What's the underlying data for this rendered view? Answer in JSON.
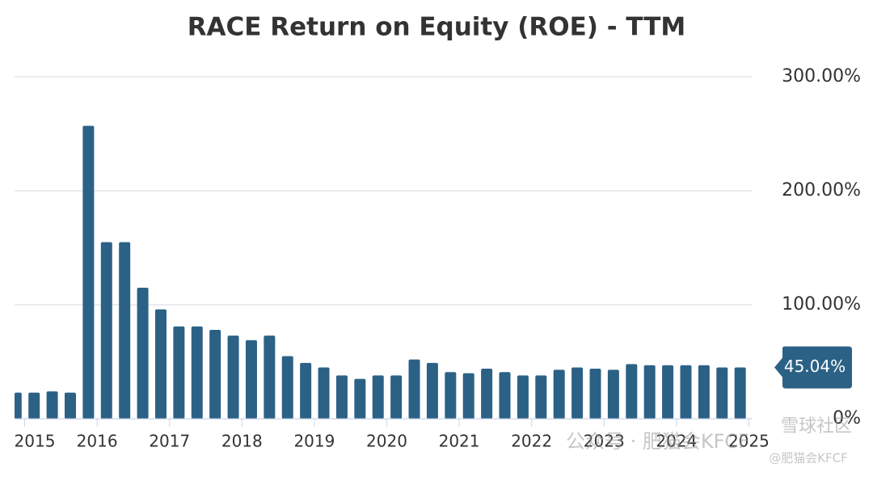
{
  "chart_data": {
    "type": "bar",
    "title": "RACE Return on Equity (ROE) - TTM",
    "x": [
      2014.88,
      2015.13,
      2015.38,
      2015.63,
      2015.88,
      2016.13,
      2016.38,
      2016.63,
      2016.88,
      2017.13,
      2017.38,
      2017.63,
      2017.88,
      2018.13,
      2018.38,
      2018.63,
      2018.88,
      2019.13,
      2019.38,
      2019.63,
      2019.88,
      2020.13,
      2020.38,
      2020.63,
      2020.88,
      2021.13,
      2021.38,
      2021.63,
      2021.88,
      2022.13,
      2022.38,
      2022.63,
      2022.88,
      2023.13,
      2023.38,
      2023.63,
      2023.88,
      2024.13,
      2024.38,
      2024.63,
      2024.88
    ],
    "values": [
      23,
      23,
      24,
      23,
      257,
      155,
      155,
      115,
      96,
      81,
      81,
      78,
      73,
      69,
      73,
      55,
      49,
      45,
      38,
      35,
      38,
      38,
      52,
      49,
      41,
      40,
      44,
      41,
      38,
      38,
      43,
      45,
      44,
      43,
      48,
      47,
      47,
      47,
      47,
      45,
      45.04
    ],
    "value_labels": [
      null,
      null,
      null,
      null,
      null,
      null,
      null,
      null,
      null,
      null,
      null,
      null,
      null,
      null,
      null,
      null,
      null,
      null,
      null,
      null,
      null,
      null,
      null,
      null,
      null,
      null,
      null,
      null,
      null,
      null,
      null,
      null,
      null,
      null,
      null,
      null,
      null,
      null,
      null,
      null,
      "45.04%"
    ],
    "color": "#2c6186",
    "xlim": [
      2014.86,
      2025.04
    ],
    "xticks": [
      2015,
      2016,
      2017,
      2018,
      2019,
      2020,
      2021,
      2022,
      2023,
      2024,
      2025
    ],
    "ylim": [
      0,
      300
    ],
    "yticks": [
      {
        "value": 0,
        "label": "0%"
      },
      {
        "value": 100,
        "label": "100.00%"
      },
      {
        "value": 200,
        "label": "200.00%"
      },
      {
        "value": 300,
        "label": "300.00%"
      }
    ],
    "grid": true,
    "annotations": [
      "公众号 · 肥猫会KFCF",
      "雪球社区",
      "@肥猫会KFCF"
    ]
  }
}
